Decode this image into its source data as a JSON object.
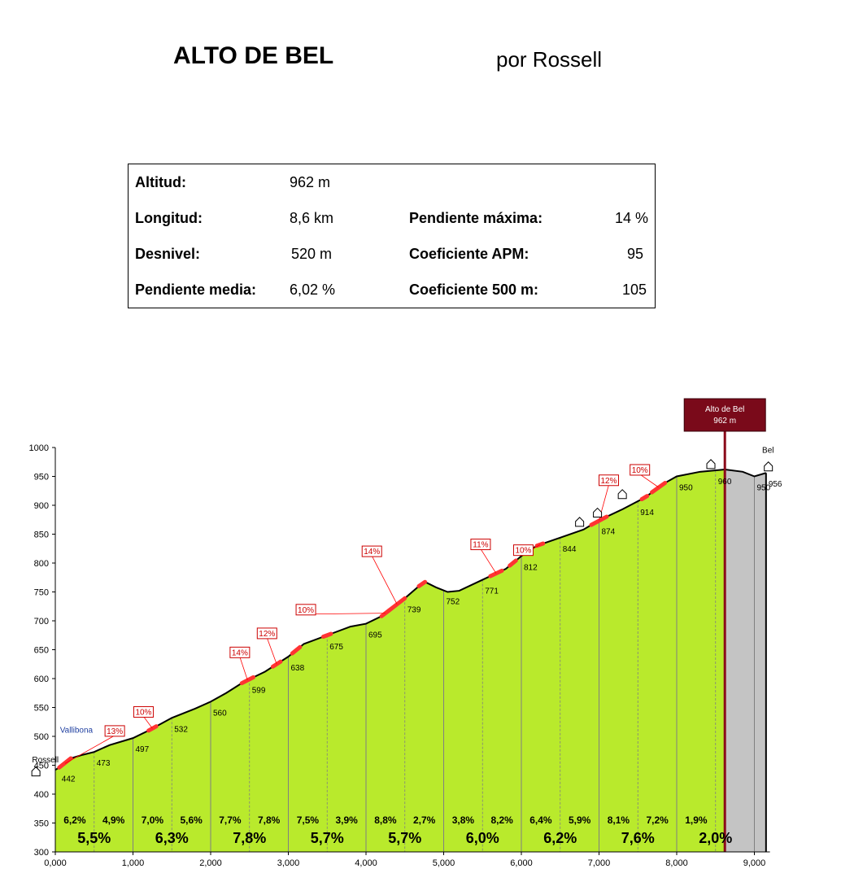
{
  "header": {
    "title": "ALTO DE BEL",
    "author": "por Rossell"
  },
  "stats": {
    "altitud_label": "Altitud:",
    "altitud_value": "962 m",
    "longitud_label": "Longitud:",
    "longitud_value": "8,6 km",
    "desnivel_label": "Desnivel:",
    "desnivel_value": "520 m",
    "pend_media_label": "Pendiente media:",
    "pend_media_value": "6,02 %",
    "pend_max_label": "Pendiente máxima:",
    "pend_max_value": "14 %",
    "apm_label": "Coeficiente APM:",
    "apm_value": "95",
    "c500_label": "Coeficiente 500 m:",
    "c500_value": "105"
  },
  "colors": {
    "fill": "#b9ea2c",
    "outline": "#000000",
    "steep": "#ff3333",
    "summit_line": "#8b0a1a",
    "descent_fill": "#c4c4c4",
    "grid": "#808080"
  },
  "chart_data": {
    "type": "area",
    "xlim": [
      0,
      9200
    ],
    "ylim": [
      300,
      1000
    ],
    "x_ticks": [
      0,
      1000,
      2000,
      3000,
      4000,
      5000,
      6000,
      7000,
      8000,
      9000
    ],
    "x_tick_labels": [
      "0,000",
      "1,000",
      "2,000",
      "3,000",
      "4,000",
      "5,000",
      "6,000",
      "7,000",
      "8,000",
      "9,000"
    ],
    "y_ticks": [
      300,
      350,
      400,
      450,
      500,
      550,
      600,
      650,
      700,
      750,
      800,
      850,
      900,
      950,
      1000
    ],
    "y_tick_labels": [
      "300",
      "350",
      "400",
      "450",
      "500",
      "550",
      "600",
      "650",
      "700",
      "750",
      "800",
      "850",
      "900",
      "950",
      "1000"
    ],
    "profile": [
      [
        0,
        442
      ],
      [
        100,
        450
      ],
      [
        200,
        462
      ],
      [
        350,
        468
      ],
      [
        500,
        473
      ],
      [
        700,
        485
      ],
      [
        1000,
        497
      ],
      [
        1200,
        510
      ],
      [
        1500,
        532
      ],
      [
        1800,
        548
      ],
      [
        2000,
        560
      ],
      [
        2200,
        575
      ],
      [
        2400,
        592
      ],
      [
        2500,
        599
      ],
      [
        2700,
        612
      ],
      [
        3000,
        638
      ],
      [
        3200,
        660
      ],
      [
        3500,
        675
      ],
      [
        3800,
        690
      ],
      [
        4000,
        695
      ],
      [
        4200,
        708
      ],
      [
        4500,
        739
      ],
      [
        4750,
        768
      ],
      [
        4900,
        758
      ],
      [
        5050,
        750
      ],
      [
        5200,
        752
      ],
      [
        5500,
        771
      ],
      [
        5800,
        790
      ],
      [
        6000,
        812
      ],
      [
        6200,
        830
      ],
      [
        6500,
        844
      ],
      [
        6800,
        858
      ],
      [
        7000,
        874
      ],
      [
        7300,
        893
      ],
      [
        7600,
        914
      ],
      [
        7800,
        935
      ],
      [
        8000,
        950
      ],
      [
        8300,
        958
      ],
      [
        8620,
        962
      ],
      [
        8850,
        958
      ],
      [
        9000,
        950
      ],
      [
        9150,
        956
      ]
    ],
    "summit": {
      "x": 8620,
      "label_line1": "Alto de Bel",
      "label_line2": "962 m"
    },
    "descent_start_x": 8620,
    "end_x": 9150,
    "km_dividers": [
      500,
      1000,
      1500,
      2000,
      2500,
      3000,
      3500,
      4000,
      4500,
      5000,
      5500,
      6000,
      6500,
      7000,
      7500,
      8000,
      8500,
      9000
    ],
    "elevation_labels": [
      {
        "x": 50,
        "y": 442,
        "text": "442"
      },
      {
        "x": 500,
        "y": 473,
        "text": "473"
      },
      {
        "x": 1000,
        "y": 497,
        "text": "497"
      },
      {
        "x": 1500,
        "y": 532,
        "text": "532"
      },
      {
        "x": 2000,
        "y": 560,
        "text": "560"
      },
      {
        "x": 2500,
        "y": 599,
        "text": "599"
      },
      {
        "x": 3000,
        "y": 638,
        "text": "638"
      },
      {
        "x": 3500,
        "y": 675,
        "text": "675"
      },
      {
        "x": 4000,
        "y": 695,
        "text": "695"
      },
      {
        "x": 4500,
        "y": 739,
        "text": "739"
      },
      {
        "x": 5000,
        "y": 752,
        "text": "752"
      },
      {
        "x": 5500,
        "y": 771,
        "text": "771"
      },
      {
        "x": 6000,
        "y": 812,
        "text": "812"
      },
      {
        "x": 6500,
        "y": 844,
        "text": "844"
      },
      {
        "x": 7000,
        "y": 874,
        "text": "874"
      },
      {
        "x": 7500,
        "y": 914,
        "text": "914"
      },
      {
        "x": 8000,
        "y": 950,
        "text": "950"
      },
      {
        "x": 8500,
        "y": 960,
        "text": "960"
      },
      {
        "x": 9000,
        "y": 950,
        "text": "950"
      },
      {
        "x": 9150,
        "y": 956,
        "text": "956"
      }
    ],
    "half_km_gradients": [
      "6,2%",
      "4,9%",
      "7,0%",
      "5,6%",
      "7,7%",
      "7,8%",
      "7,5%",
      "3,9%",
      "8,8%",
      "2,7%",
      "3,8%",
      "8,2%",
      "6,4%",
      "5,9%",
      "8,1%",
      "7,2%",
      "1,9%"
    ],
    "km_gradients": [
      "5,5%",
      "6,3%",
      "7,8%",
      "5,7%",
      "5,7%",
      "6,0%",
      "6,2%",
      "7,6%",
      "2,0%"
    ],
    "steep_sections": [
      {
        "x1": 50,
        "x2": 200,
        "label": "13%",
        "lx": 640,
        "ly": 510
      },
      {
        "x1": 1200,
        "x2": 1300,
        "label": "10%",
        "lx": 1010,
        "ly": 543
      },
      {
        "x1": 2400,
        "x2": 2550,
        "label": "14%",
        "lx": 2250,
        "ly": 646
      },
      {
        "x1": 2800,
        "x2": 2900,
        "label": "12%",
        "lx": 2600,
        "ly": 679
      },
      {
        "x1": 3050,
        "x2": 3150,
        "label": "",
        "lx": 0,
        "ly": 0
      },
      {
        "x1": 3450,
        "x2": 3550,
        "label": "",
        "lx": 0,
        "ly": 0
      },
      {
        "x1": 4200,
        "x2": 4300,
        "label": "10%",
        "lx": 3100,
        "ly": 720
      },
      {
        "x1": 4300,
        "x2": 4500,
        "label": "14%",
        "lx": 3950,
        "ly": 821
      },
      {
        "x1": 4680,
        "x2": 4760,
        "label": "",
        "lx": 0,
        "ly": 0
      },
      {
        "x1": 5600,
        "x2": 5750,
        "label": "11%",
        "lx": 5350,
        "ly": 833
      },
      {
        "x1": 5850,
        "x2": 5930,
        "label": "",
        "lx": 0,
        "ly": 0
      },
      {
        "x1": 6200,
        "x2": 6280,
        "label": "10%",
        "lx": 5900,
        "ly": 823
      },
      {
        "x1": 6900,
        "x2": 7100,
        "label": "12%",
        "lx": 7000,
        "ly": 944
      },
      {
        "x1": 7550,
        "x2": 7620,
        "label": "",
        "lx": 0,
        "ly": 0
      },
      {
        "x1": 7680,
        "x2": 7850,
        "label": "10%",
        "lx": 7400,
        "ly": 962
      }
    ],
    "place_labels": [
      {
        "text": "Rossell",
        "x": -300,
        "y": 455,
        "color": "#000000"
      },
      {
        "text": "Vallibona",
        "x": 60,
        "y": 506,
        "color": "#1f3fa0"
      },
      {
        "text": "Bel",
        "x": 9100,
        "y": 991,
        "color": "#000000"
      }
    ]
  }
}
